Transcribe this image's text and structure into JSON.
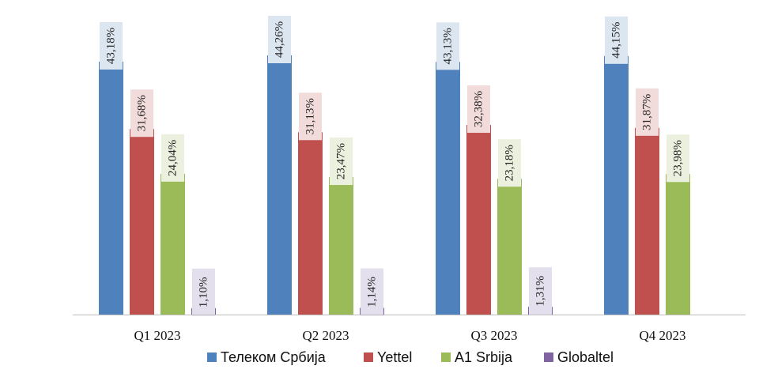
{
  "chart_data": {
    "type": "bar",
    "categories": [
      "Q1 2023",
      "Q2 2023",
      "Q3 2023",
      "Q4 2023"
    ],
    "series": [
      {
        "name": "Телеком Србија",
        "color": "#4f81bd",
        "label_bg": "#dce6f1",
        "values": [
          43.18,
          44.26,
          43.13,
          44.15
        ],
        "labels": [
          "43,18%",
          "44,26%",
          "43,13%",
          "44,15%"
        ]
      },
      {
        "name": "Yettel",
        "color": "#c0504d",
        "label_bg": "#f2dcdb",
        "values": [
          31.68,
          31.13,
          32.38,
          31.87
        ],
        "labels": [
          "31,68%",
          "31,13%",
          "32,38%",
          "31,87%"
        ]
      },
      {
        "name": "A1 Srbija",
        "color": "#9bbb59",
        "label_bg": "#ebf1de",
        "values": [
          24.04,
          23.47,
          23.18,
          23.98
        ],
        "labels": [
          "24,04%",
          "23,47%",
          "23,18%",
          "23,98%"
        ]
      },
      {
        "name": "Globaltel",
        "color": "#8064a2",
        "label_bg": "#e4dfec",
        "values": [
          1.1,
          1.14,
          1.31,
          null
        ],
        "labels": [
          "1,10%",
          "1,14%",
          "1,31%",
          null
        ]
      }
    ],
    "ylim": [
      0,
      50
    ],
    "legend_position": "bottom",
    "grid": false
  }
}
